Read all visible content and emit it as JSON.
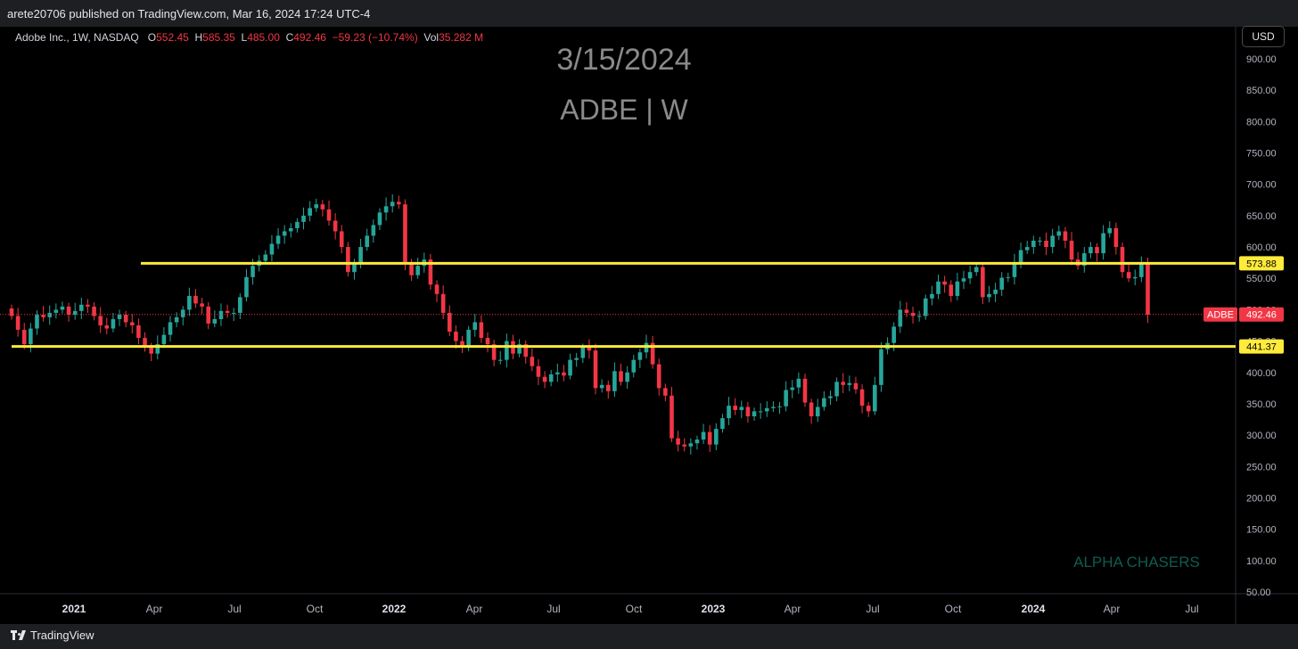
{
  "header": {
    "published": "arete20706 published on TradingView.com, Mar 16, 2024 17:24 UTC-4"
  },
  "legend": {
    "symbol": "Adobe Inc., 1W, NASDAQ",
    "o_label": "O",
    "o_value": "552.45",
    "h_label": "H",
    "h_value": "585.35",
    "l_label": "L",
    "l_value": "485.00",
    "c_label": "C",
    "c_value": "492.46",
    "change": "−59.23 (−10.74%)",
    "vol_label": "Vol",
    "vol_value": "35.282 M"
  },
  "currency_button": "USD",
  "footer": {
    "brand": "TradingView"
  },
  "colors": {
    "up": "#26a69a",
    "down": "#f23645",
    "level": "#ffeb3b",
    "watermark": "#8a8a8a",
    "signature": "#0f5c52"
  },
  "chart_data": {
    "type": "candlestick",
    "title": "3/15/2024",
    "subtitle": "ADBE | W",
    "annotation": "ALPHA CHASERS",
    "ylim": [
      50,
      900
    ],
    "yticks": [
      "900.00",
      "850.00",
      "800.00",
      "750.00",
      "700.00",
      "650.00",
      "600.00",
      "550.00",
      "500.00",
      "450.00",
      "400.00",
      "350.00",
      "300.00",
      "250.00",
      "200.00",
      "150.00",
      "100.00",
      "50.00"
    ],
    "xticks": [
      "2021",
      "Apr",
      "Jul",
      "Oct",
      "2022",
      "Apr",
      "Jul",
      "Oct",
      "2023",
      "Apr",
      "Jul",
      "Oct",
      "2024",
      "Apr",
      "Jul"
    ],
    "horizontal_levels": [
      {
        "price": 573.88,
        "label": "573.88"
      },
      {
        "price": 441.37,
        "label": "441.37"
      }
    ],
    "last_price": {
      "symbol": "ADBE",
      "price": 492.46,
      "label": "492.46"
    },
    "close_prices": [
      490,
      468,
      445,
      470,
      492,
      488,
      495,
      500,
      505,
      492,
      498,
      508,
      505,
      490,
      475,
      470,
      485,
      492,
      480,
      475,
      455,
      440,
      430,
      445,
      460,
      480,
      488,
      500,
      522,
      510,
      505,
      478,
      485,
      498,
      495,
      495,
      520,
      552,
      570,
      578,
      588,
      605,
      618,
      625,
      630,
      640,
      650,
      662,
      668,
      660,
      642,
      625,
      600,
      560,
      575,
      600,
      618,
      635,
      655,
      665,
      672,
      668,
      575,
      555,
      570,
      580,
      540,
      525,
      495,
      465,
      450,
      440,
      468,
      480,
      455,
      445,
      420,
      420,
      450,
      430,
      445,
      425,
      410,
      393,
      385,
      397,
      400,
      395,
      420,
      423,
      440,
      435,
      375,
      380,
      370,
      402,
      385,
      400,
      420,
      432,
      447,
      413,
      375,
      363,
      295,
      285,
      282,
      287,
      293,
      305,
      285,
      310,
      327,
      347,
      340,
      345,
      330,
      338,
      338,
      343,
      345,
      346,
      372,
      376,
      390,
      352,
      330,
      345,
      359,
      362,
      385,
      380,
      383,
      373,
      347,
      338,
      380,
      437,
      447,
      473,
      500,
      495,
      490,
      490,
      518,
      525,
      545,
      540,
      522,
      545,
      550,
      560,
      568,
      520,
      525,
      532,
      551,
      552,
      575,
      595,
      600,
      610,
      610,
      600,
      618,
      625,
      610,
      580,
      570,
      590,
      600,
      590,
      622,
      630,
      600,
      560,
      550,
      552,
      575,
      492
    ]
  }
}
